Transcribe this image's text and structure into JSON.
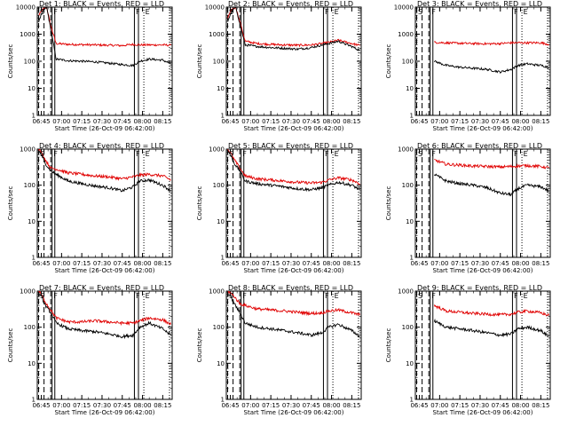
{
  "figure": {
    "xlabel": "Start Time (26-Oct-09 06:42:00)",
    "ylabel": "Counts/sec",
    "x_ticks": [
      "06:45",
      "07:00",
      "07:15",
      "07:30",
      "07:45",
      "08:00",
      "08:15"
    ],
    "y_ticks": [
      "1",
      "10",
      "100",
      "1000",
      "10000"
    ]
  },
  "colors": {
    "events": "#000000",
    "lld": "#e00000"
  },
  "chart_data": [
    {
      "type": "line",
      "title": "Det 1: BLACK = Events, RED = LLD",
      "xlim": [
        "06:42",
        "08:22"
      ],
      "ylim": [
        1,
        10000
      ],
      "yscale": "log",
      "annotations": [
        {
          "text": "S",
          "x": "06:44"
        },
        {
          "text": "F",
          "x": "06:54"
        },
        {
          "text": "F",
          "x": "07:55"
        },
        {
          "text": "E",
          "x": "08:02"
        }
      ],
      "vlines_solid": [
        "06:53",
        "06:55",
        "07:54",
        "07:57"
      ],
      "vlines_dashed": [
        "06:43",
        "06:47",
        "06:52"
      ],
      "vlines_dotted": [
        "08:01",
        "08:20"
      ],
      "series": [
        {
          "name": "LLD",
          "color": "#e00000",
          "x": [
            "06:43",
            "06:46",
            "06:49",
            "06:52",
            "06:56",
            "07:05",
            "07:15",
            "07:25",
            "07:35",
            "07:45",
            "07:53",
            "07:58",
            "08:05",
            "08:15",
            "08:21"
          ],
          "values": [
            5000,
            8000,
            10000,
            2000,
            450,
            420,
            410,
            400,
            390,
            380,
            420,
            400,
            400,
            400,
            390
          ]
        },
        {
          "name": "Events",
          "color": "#000000",
          "x": [
            "06:43",
            "06:46",
            "06:49",
            "06:52",
            "06:56",
            "07:05",
            "07:15",
            "07:25",
            "07:35",
            "07:45",
            "07:53",
            "07:58",
            "08:05",
            "08:15",
            "08:21"
          ],
          "values": [
            3000,
            7000,
            10000,
            1500,
            120,
            105,
            100,
            95,
            85,
            75,
            70,
            100,
            120,
            110,
            80
          ]
        }
      ]
    },
    {
      "type": "line",
      "title": "Det 2: BLACK = Events, RED = LLD",
      "xlim": [
        "06:42",
        "08:22"
      ],
      "ylim": [
        1,
        10000
      ],
      "yscale": "log",
      "annotations": [
        {
          "text": "S",
          "x": "06:44"
        },
        {
          "text": "F",
          "x": "06:54"
        },
        {
          "text": "F",
          "x": "07:55"
        },
        {
          "text": "E",
          "x": "08:02"
        }
      ],
      "vlines_solid": [
        "06:53",
        "06:55",
        "07:54",
        "07:57"
      ],
      "vlines_dashed": [
        "06:43",
        "06:47",
        "06:52"
      ],
      "vlines_dotted": [
        "08:01",
        "08:20"
      ],
      "series": [
        {
          "name": "LLD",
          "color": "#e00000",
          "x": [
            "06:43",
            "06:46",
            "06:49",
            "06:52",
            "06:56",
            "07:05",
            "07:15",
            "07:25",
            "07:35",
            "07:45",
            "07:53",
            "07:58",
            "08:05",
            "08:15",
            "08:21"
          ],
          "values": [
            4000,
            8000,
            10000,
            3000,
            550,
            450,
            420,
            400,
            390,
            400,
            450,
            500,
            600,
            450,
            380
          ]
        },
        {
          "name": "Events",
          "color": "#000000",
          "x": [
            "06:43",
            "06:46",
            "06:49",
            "06:52",
            "06:56",
            "07:05",
            "07:15",
            "07:25",
            "07:35",
            "07:45",
            "07:53",
            "07:58",
            "08:05",
            "08:15",
            "08:21"
          ],
          "values": [
            3000,
            7000,
            10000,
            2500,
            400,
            350,
            320,
            300,
            280,
            320,
            400,
            450,
            550,
            350,
            250
          ]
        }
      ]
    },
    {
      "type": "line",
      "title": "Det 3: BLACK = Events, RED = LLD",
      "xlim": [
        "06:42",
        "08:22"
      ],
      "ylim": [
        1,
        10000
      ],
      "yscale": "log",
      "annotations": [
        {
          "text": "S",
          "x": "06:44"
        },
        {
          "text": "F",
          "x": "06:54"
        },
        {
          "text": "F",
          "x": "07:55"
        },
        {
          "text": "E",
          "x": "08:02"
        }
      ],
      "vlines_solid": [
        "06:53",
        "06:55",
        "07:54",
        "07:57"
      ],
      "vlines_dashed": [
        "06:43",
        "06:47",
        "06:52"
      ],
      "vlines_dotted": [
        "08:01",
        "08:20"
      ],
      "series": [
        {
          "name": "LLD",
          "color": "#e00000",
          "x": [
            "06:56",
            "07:05",
            "07:15",
            "07:25",
            "07:35",
            "07:45",
            "07:53",
            "07:58",
            "08:05",
            "08:15",
            "08:21"
          ],
          "values": [
            500,
            480,
            460,
            450,
            440,
            450,
            480,
            480,
            480,
            480,
            420
          ]
        },
        {
          "name": "Events",
          "color": "#000000",
          "x": [
            "06:56",
            "07:05",
            "07:15",
            "07:25",
            "07:35",
            "07:45",
            "07:53",
            "07:58",
            "08:05",
            "08:15",
            "08:21"
          ],
          "values": [
            100,
            70,
            60,
            55,
            50,
            40,
            50,
            70,
            80,
            70,
            60
          ]
        }
      ]
    },
    {
      "type": "line",
      "title": "Det 4: BLACK = Events, RED = LLD",
      "xlim": [
        "06:42",
        "08:22"
      ],
      "ylim": [
        1,
        1000
      ],
      "yscale": "log",
      "annotations": [
        {
          "text": "S",
          "x": "06:44"
        },
        {
          "text": "F",
          "x": "06:54"
        },
        {
          "text": "F",
          "x": "07:55"
        },
        {
          "text": "E",
          "x": "08:02"
        }
      ],
      "vlines_solid": [
        "06:53",
        "06:55",
        "07:54",
        "07:57"
      ],
      "vlines_dashed": [
        "06:43",
        "06:47",
        "06:52"
      ],
      "vlines_dotted": [
        "08:01",
        "08:20"
      ],
      "series": [
        {
          "name": "LLD",
          "color": "#e00000",
          "x": [
            "06:43",
            "06:45",
            "06:48",
            "06:52",
            "06:56",
            "07:05",
            "07:15",
            "07:25",
            "07:35",
            "07:45",
            "07:53",
            "07:58",
            "08:05",
            "08:15",
            "08:21"
          ],
          "values": [
            1000,
            800,
            500,
            300,
            280,
            220,
            200,
            180,
            170,
            150,
            170,
            190,
            200,
            180,
            140
          ]
        },
        {
          "name": "Events",
          "color": "#000000",
          "x": [
            "06:43",
            "06:45",
            "06:48",
            "06:52",
            "06:56",
            "07:05",
            "07:15",
            "07:25",
            "07:35",
            "07:45",
            "07:53",
            "07:58",
            "08:05",
            "08:15",
            "08:21"
          ],
          "values": [
            900,
            700,
            400,
            250,
            200,
            130,
            110,
            95,
            85,
            70,
            90,
            130,
            140,
            100,
            70
          ]
        }
      ]
    },
    {
      "type": "line",
      "title": "Det 5: BLACK = Events, RED = LLD",
      "xlim": [
        "06:42",
        "08:22"
      ],
      "ylim": [
        1,
        1000
      ],
      "yscale": "log",
      "annotations": [
        {
          "text": "S",
          "x": "06:44"
        },
        {
          "text": "F",
          "x": "06:54"
        },
        {
          "text": "F",
          "x": "07:55"
        },
        {
          "text": "E",
          "x": "08:02"
        }
      ],
      "vlines_solid": [
        "06:53",
        "06:55",
        "07:54",
        "07:57"
      ],
      "vlines_dashed": [
        "06:43",
        "06:47",
        "06:52"
      ],
      "vlines_dotted": [
        "08:01",
        "08:20"
      ],
      "series": [
        {
          "name": "LLD",
          "color": "#e00000",
          "x": [
            "06:43",
            "06:45",
            "06:48",
            "06:52",
            "06:56",
            "07:05",
            "07:15",
            "07:25",
            "07:35",
            "07:45",
            "07:53",
            "07:58",
            "08:05",
            "08:15",
            "08:21"
          ],
          "values": [
            1000,
            800,
            500,
            300,
            180,
            150,
            140,
            130,
            120,
            115,
            120,
            140,
            160,
            140,
            110
          ]
        },
        {
          "name": "Events",
          "color": "#000000",
          "x": [
            "06:43",
            "06:45",
            "06:48",
            "06:52",
            "06:56",
            "07:05",
            "07:15",
            "07:25",
            "07:35",
            "07:45",
            "07:53",
            "07:58",
            "08:05",
            "08:15",
            "08:21"
          ],
          "values": [
            900,
            700,
            400,
            250,
            130,
            110,
            100,
            90,
            80,
            75,
            85,
            100,
            120,
            100,
            75
          ]
        }
      ]
    },
    {
      "type": "line",
      "title": "Det 6: BLACK = Events, RED = LLD",
      "xlim": [
        "06:42",
        "08:22"
      ],
      "ylim": [
        1,
        1000
      ],
      "yscale": "log",
      "annotations": [
        {
          "text": "S",
          "x": "06:44"
        },
        {
          "text": "F",
          "x": "06:54"
        },
        {
          "text": "F",
          "x": "07:55"
        },
        {
          "text": "E",
          "x": "08:02"
        }
      ],
      "vlines_solid": [
        "06:53",
        "06:55",
        "07:54",
        "07:57"
      ],
      "vlines_dashed": [
        "06:43",
        "06:47",
        "06:52"
      ],
      "vlines_dotted": [
        "08:01",
        "08:20"
      ],
      "series": [
        {
          "name": "LLD",
          "color": "#e00000",
          "x": [
            "06:56",
            "07:05",
            "07:15",
            "07:25",
            "07:35",
            "07:45",
            "07:53",
            "07:58",
            "08:05",
            "08:15",
            "08:21"
          ],
          "values": [
            500,
            380,
            360,
            340,
            330,
            320,
            330,
            340,
            350,
            330,
            300
          ]
        },
        {
          "name": "Events",
          "color": "#000000",
          "x": [
            "06:56",
            "07:05",
            "07:15",
            "07:25",
            "07:35",
            "07:45",
            "07:53",
            "07:58",
            "08:05",
            "08:15",
            "08:21"
          ],
          "values": [
            200,
            130,
            110,
            100,
            85,
            60,
            55,
            80,
            100,
            90,
            70
          ]
        }
      ]
    },
    {
      "type": "line",
      "title": "Det 7: BLACK = Events, RED = LLD",
      "xlim": [
        "06:42",
        "08:22"
      ],
      "ylim": [
        1,
        1000
      ],
      "yscale": "log",
      "annotations": [
        {
          "text": "S",
          "x": "06:44"
        },
        {
          "text": "F",
          "x": "06:54"
        },
        {
          "text": "F",
          "x": "07:55"
        },
        {
          "text": "E",
          "x": "08:02"
        }
      ],
      "vlines_solid": [
        "06:53",
        "06:55",
        "07:54",
        "07:57"
      ],
      "vlines_dashed": [
        "06:43",
        "06:47",
        "06:52"
      ],
      "vlines_dotted": [
        "08:01",
        "08:20"
      ],
      "series": [
        {
          "name": "LLD",
          "color": "#e00000",
          "x": [
            "06:43",
            "06:45",
            "06:48",
            "06:52",
            "06:56",
            "07:05",
            "07:15",
            "07:25",
            "07:35",
            "07:45",
            "07:53",
            "07:58",
            "08:05",
            "08:15",
            "08:21"
          ],
          "values": [
            1000,
            800,
            500,
            300,
            180,
            140,
            140,
            150,
            140,
            130,
            130,
            150,
            180,
            160,
            120
          ]
        },
        {
          "name": "Events",
          "color": "#000000",
          "x": [
            "06:43",
            "06:45",
            "06:48",
            "06:52",
            "06:56",
            "07:05",
            "07:15",
            "07:25",
            "07:35",
            "07:45",
            "07:53",
            "07:58",
            "08:05",
            "08:15",
            "08:21"
          ],
          "values": [
            900,
            700,
            400,
            250,
            130,
            90,
            80,
            75,
            65,
            55,
            60,
            100,
            130,
            90,
            60
          ]
        }
      ]
    },
    {
      "type": "line",
      "title": "Det 8: BLACK = Events, RED = LLD",
      "xlim": [
        "06:42",
        "08:22"
      ],
      "ylim": [
        1,
        1000
      ],
      "yscale": "log",
      "annotations": [
        {
          "text": "S",
          "x": "06:44"
        },
        {
          "text": "F",
          "x": "06:54"
        },
        {
          "text": "F",
          "x": "07:55"
        },
        {
          "text": "E",
          "x": "08:02"
        }
      ],
      "vlines_solid": [
        "06:53",
        "06:55",
        "07:54",
        "07:57"
      ],
      "vlines_dashed": [
        "06:43",
        "06:47",
        "06:52"
      ],
      "vlines_dotted": [
        "08:01",
        "08:20"
      ],
      "series": [
        {
          "name": "LLD",
          "color": "#e00000",
          "x": [
            "06:43",
            "06:45",
            "06:48",
            "06:52",
            "06:56",
            "07:05",
            "07:15",
            "07:25",
            "07:35",
            "07:45",
            "07:53",
            "07:58",
            "08:05",
            "08:15",
            "08:21"
          ],
          "values": [
            1000,
            900,
            700,
            450,
            400,
            320,
            300,
            280,
            260,
            240,
            250,
            280,
            300,
            250,
            220
          ]
        },
        {
          "name": "Events",
          "color": "#000000",
          "x": [
            "06:43",
            "06:45",
            "06:48",
            "06:52",
            "06:56",
            "07:05",
            "07:15",
            "07:25",
            "07:35",
            "07:45",
            "07:53",
            "07:58",
            "08:05",
            "08:15",
            "08:21"
          ],
          "values": [
            900,
            700,
            450,
            250,
            130,
            100,
            90,
            80,
            70,
            60,
            70,
            100,
            120,
            80,
            55
          ]
        }
      ]
    },
    {
      "type": "line",
      "title": "Det 9: BLACK = Events, RED = LLD",
      "xlim": [
        "06:42",
        "08:22"
      ],
      "ylim": [
        1,
        1000
      ],
      "yscale": "log",
      "annotations": [
        {
          "text": "S",
          "x": "06:44"
        },
        {
          "text": "F",
          "x": "06:54"
        },
        {
          "text": "F",
          "x": "07:55"
        },
        {
          "text": "E",
          "x": "08:02"
        }
      ],
      "vlines_solid": [
        "06:53",
        "06:55",
        "07:54",
        "07:57"
      ],
      "vlines_dashed": [
        "06:43",
        "06:47",
        "06:52"
      ],
      "vlines_dotted": [
        "08:01",
        "08:20"
      ],
      "series": [
        {
          "name": "LLD",
          "color": "#e00000",
          "x": [
            "06:56",
            "07:05",
            "07:15",
            "07:25",
            "07:35",
            "07:45",
            "07:53",
            "07:58",
            "08:05",
            "08:15",
            "08:21"
          ],
          "values": [
            400,
            280,
            260,
            240,
            230,
            220,
            230,
            260,
            280,
            250,
            210
          ]
        },
        {
          "name": "Events",
          "color": "#000000",
          "x": [
            "06:56",
            "07:05",
            "07:15",
            "07:25",
            "07:35",
            "07:45",
            "07:53",
            "07:58",
            "08:05",
            "08:15",
            "08:21"
          ],
          "values": [
            150,
            100,
            90,
            80,
            70,
            60,
            65,
            90,
            100,
            80,
            55
          ]
        }
      ]
    }
  ]
}
